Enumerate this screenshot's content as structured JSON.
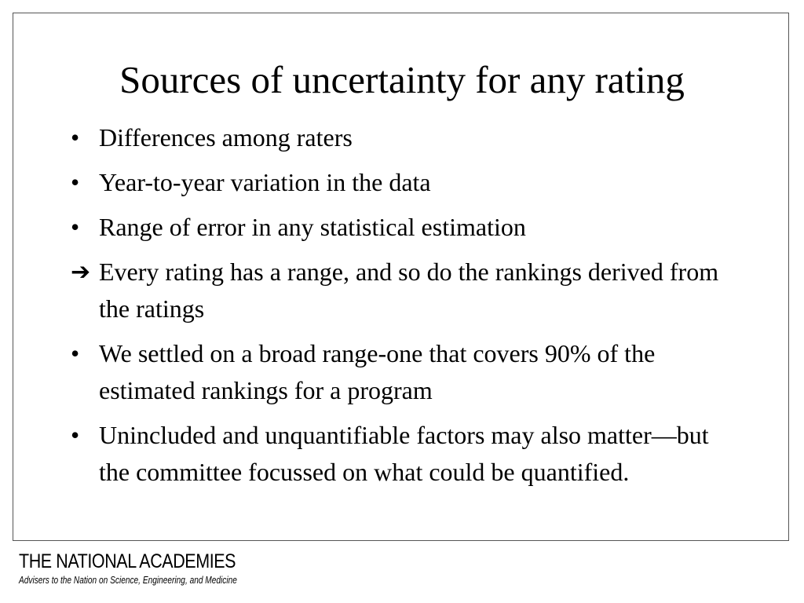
{
  "slide": {
    "title": "Sources of uncertainty for any rating",
    "bullets": [
      {
        "marker": "•",
        "text": "Differences among raters"
      },
      {
        "marker": "•",
        "text": "Year-to-year variation in the data"
      },
      {
        "marker": "•",
        "text": "Range of error in any statistical estimation"
      },
      {
        "marker": "➔",
        "text": "Every rating has a range, and so do the rankings derived from the ratings"
      },
      {
        "marker": "•",
        "text": "We settled on a broad range-one that covers 90% of the estimated rankings for a program"
      },
      {
        "marker": "•",
        "text": "Unincluded and unquantifiable factors may also matter—but the committee focussed on what could be quantified."
      }
    ]
  },
  "footer": {
    "logo_name": "THE NATIONAL ACADEMIES",
    "logo_tagline": "Advisers to the Nation on Science, Engineering, and Medicine"
  }
}
